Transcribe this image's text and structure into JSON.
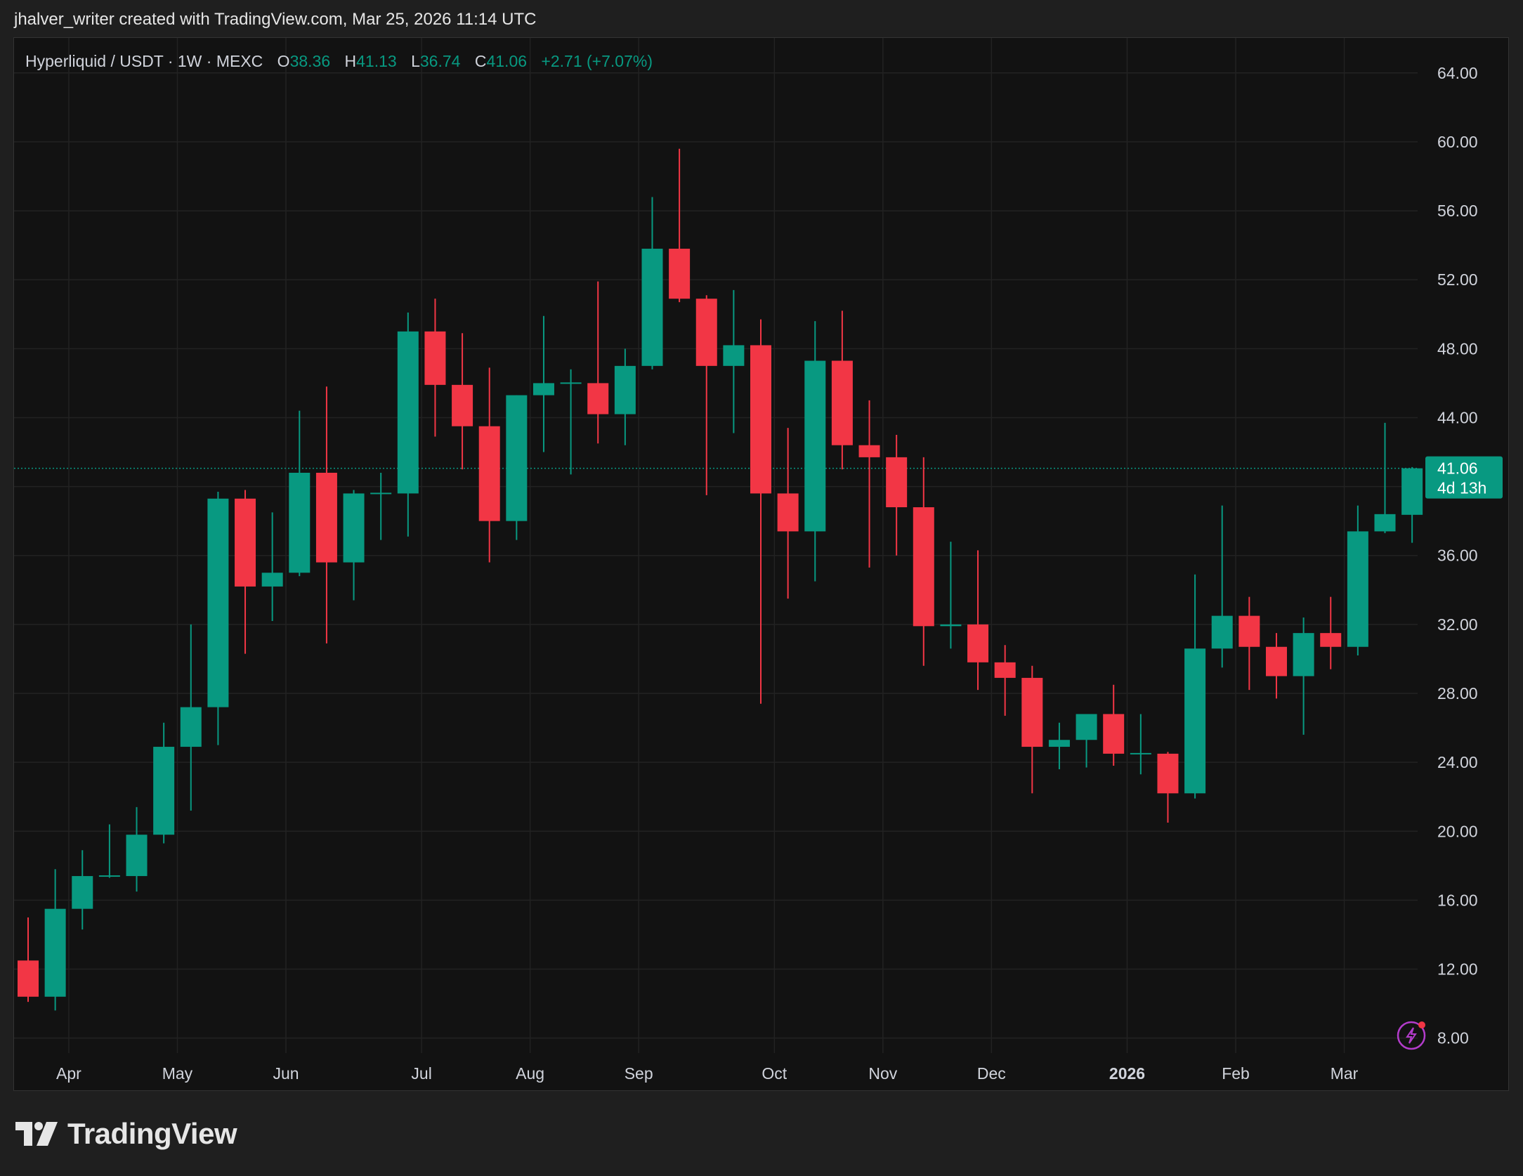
{
  "attribution": "jhalver_writer created with TradingView.com, Mar 25, 2026 11:14 UTC",
  "brand": "TradingView",
  "colors": {
    "up": "#089981",
    "down": "#f23645",
    "text": "#d1d4dc",
    "grid": "#222222",
    "background": "#121212",
    "lightning": "#b33ccb"
  },
  "chart_data": {
    "type": "candlestick",
    "symbol": "Hyperliquid / USDT",
    "interval": "1W",
    "exchange": "MEXC",
    "header": {
      "o_label": "O",
      "o_value": "38.36",
      "h_label": "H",
      "h_value": "41.13",
      "l_label": "L",
      "l_value": "36.74",
      "c_label": "C",
      "c_value": "41.06",
      "change": "+2.71 (+7.07%)"
    },
    "last_price": "41.06",
    "countdown": "4d 13h",
    "ylim": [
      5.5,
      65.5
    ],
    "grid": true,
    "y_ticks": [
      "64.00",
      "60.00",
      "56.00",
      "52.00",
      "48.00",
      "44.00",
      "40.00",
      "36.00",
      "32.00",
      "28.00",
      "24.00",
      "20.00",
      "16.00",
      "12.00",
      "8.00"
    ],
    "x_ticks": [
      {
        "label": "Apr",
        "week": 1.5,
        "bold": false
      },
      {
        "label": "May",
        "week": 5.5,
        "bold": false
      },
      {
        "label": "Jun",
        "week": 9.5,
        "bold": false
      },
      {
        "label": "Jul",
        "week": 14.5,
        "bold": false
      },
      {
        "label": "Aug",
        "week": 18.5,
        "bold": false
      },
      {
        "label": "Sep",
        "week": 22.5,
        "bold": false
      },
      {
        "label": "Oct",
        "week": 27.5,
        "bold": false
      },
      {
        "label": "Nov",
        "week": 31.5,
        "bold": false
      },
      {
        "label": "Dec",
        "week": 35.5,
        "bold": false
      },
      {
        "label": "2026",
        "week": 40.5,
        "bold": true
      },
      {
        "label": "Feb",
        "week": 44.5,
        "bold": false
      },
      {
        "label": "Mar",
        "week": 48.5,
        "bold": false
      }
    ],
    "candles": [
      [
        12.5,
        15.0,
        10.1,
        10.4
      ],
      [
        10.4,
        17.8,
        9.6,
        15.5
      ],
      [
        15.5,
        18.9,
        14.3,
        17.4
      ],
      [
        17.4,
        20.4,
        17.3,
        17.4
      ],
      [
        17.4,
        21.4,
        16.5,
        19.8
      ],
      [
        19.8,
        26.3,
        19.3,
        24.9
      ],
      [
        24.9,
        32.0,
        21.2,
        27.2
      ],
      [
        27.2,
        39.7,
        25.0,
        39.3
      ],
      [
        39.3,
        39.8,
        30.3,
        34.2
      ],
      [
        34.2,
        38.5,
        32.2,
        35.0
      ],
      [
        35.0,
        44.4,
        34.8,
        40.8
      ],
      [
        40.8,
        45.8,
        30.9,
        35.6
      ],
      [
        35.6,
        39.8,
        33.4,
        39.6
      ],
      [
        39.6,
        40.8,
        36.9,
        39.6
      ],
      [
        39.6,
        50.1,
        37.1,
        49.0
      ],
      [
        49.0,
        50.9,
        42.9,
        45.9
      ],
      [
        45.9,
        48.9,
        41.0,
        43.5
      ],
      [
        43.5,
        46.9,
        35.6,
        38.0
      ],
      [
        38.0,
        45.3,
        36.9,
        45.3
      ],
      [
        45.3,
        49.9,
        42.0,
        46.0
      ],
      [
        46.0,
        46.8,
        40.7,
        46.0
      ],
      [
        46.0,
        51.9,
        42.5,
        44.2
      ],
      [
        44.2,
        48.0,
        42.4,
        47.0
      ],
      [
        47.0,
        56.8,
        46.8,
        53.8
      ],
      [
        53.8,
        59.6,
        50.7,
        50.9
      ],
      [
        50.9,
        51.1,
        39.5,
        47.0
      ],
      [
        47.0,
        51.4,
        43.1,
        48.2
      ],
      [
        48.2,
        49.7,
        27.4,
        39.6
      ],
      [
        39.6,
        43.4,
        33.5,
        37.4
      ],
      [
        37.4,
        49.6,
        34.5,
        47.3
      ],
      [
        47.3,
        50.2,
        41.0,
        42.4
      ],
      [
        42.4,
        45.0,
        35.3,
        41.7
      ],
      [
        41.7,
        43.0,
        36.0,
        38.8
      ],
      [
        38.8,
        41.7,
        29.6,
        31.9
      ],
      [
        31.9,
        36.8,
        30.6,
        32.0
      ],
      [
        32.0,
        36.3,
        28.2,
        29.8
      ],
      [
        29.8,
        30.8,
        26.7,
        28.9
      ],
      [
        28.9,
        29.6,
        22.2,
        24.9
      ],
      [
        24.9,
        26.3,
        23.6,
        25.3
      ],
      [
        25.3,
        26.8,
        23.7,
        26.8
      ],
      [
        26.8,
        28.5,
        23.8,
        24.5
      ],
      [
        24.5,
        26.8,
        23.3,
        24.5
      ],
      [
        24.5,
        24.6,
        20.5,
        22.2
      ],
      [
        22.2,
        34.9,
        21.9,
        30.6
      ],
      [
        30.6,
        38.9,
        29.5,
        32.5
      ],
      [
        32.5,
        33.6,
        28.2,
        30.7
      ],
      [
        30.7,
        31.5,
        27.7,
        29.0
      ],
      [
        29.0,
        32.4,
        25.6,
        31.5
      ],
      [
        31.5,
        33.6,
        29.4,
        30.7
      ],
      [
        30.7,
        38.9,
        30.2,
        37.4
      ],
      [
        37.4,
        43.7,
        37.3,
        38.4
      ],
      [
        38.36,
        41.13,
        36.74,
        41.06
      ]
    ]
  }
}
